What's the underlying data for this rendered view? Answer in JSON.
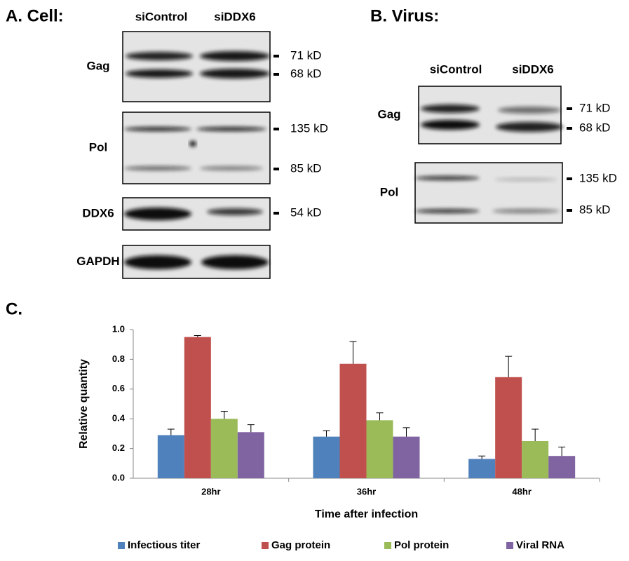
{
  "panel_a": {
    "title": "A. Cell:",
    "lanes": [
      "siControl",
      "siDDX6"
    ],
    "blots": [
      {
        "label": "Gag",
        "markers": [
          "71 kD",
          "68 kD"
        ]
      },
      {
        "label": "Pol",
        "markers": [
          "135 kD",
          "85 kD"
        ]
      },
      {
        "label": "DDX6",
        "markers": [
          "54 kD"
        ]
      },
      {
        "label": "GAPDH"
      }
    ]
  },
  "panel_b": {
    "title": "B. Virus:",
    "lanes": [
      "siControl",
      "siDDX6"
    ],
    "blots": [
      {
        "label": "Gag",
        "markers": [
          "71 kD",
          "68 kD"
        ]
      },
      {
        "label": "Pol",
        "markers": [
          "135 kD",
          "85 kD"
        ]
      }
    ]
  },
  "chart_data": {
    "type": "bar",
    "title": "C.",
    "x_label": "Time after infection",
    "y_label": "Relative quantity",
    "categories": [
      "28hr",
      "36hr",
      "48hr"
    ],
    "series": [
      {
        "name": "Infectious titer",
        "color": "#4f81bd",
        "values": [
          0.29,
          0.28,
          0.13
        ],
        "errors": [
          0.04,
          0.04,
          0.02
        ]
      },
      {
        "name": "Gag protein",
        "color": "#c0504d",
        "values": [
          0.95,
          0.77,
          0.68
        ],
        "errors": [
          0.01,
          0.15,
          0.14
        ]
      },
      {
        "name": "Pol protein",
        "color": "#9bbb59",
        "values": [
          0.4,
          0.39,
          0.25
        ],
        "errors": [
          0.05,
          0.05,
          0.08
        ]
      },
      {
        "name": "Viral RNA",
        "color": "#8064a2",
        "values": [
          0.31,
          0.28,
          0.15
        ],
        "errors": [
          0.05,
          0.06,
          0.06
        ]
      }
    ],
    "ylim": [
      0,
      1
    ],
    "yticks": [
      {
        "value": 0,
        "label": "0.0"
      },
      0.2,
      0.4,
      0.6,
      0.8,
      {
        "value": 1,
        "label": "1.0"
      }
    ],
    "legend": "bottom"
  }
}
